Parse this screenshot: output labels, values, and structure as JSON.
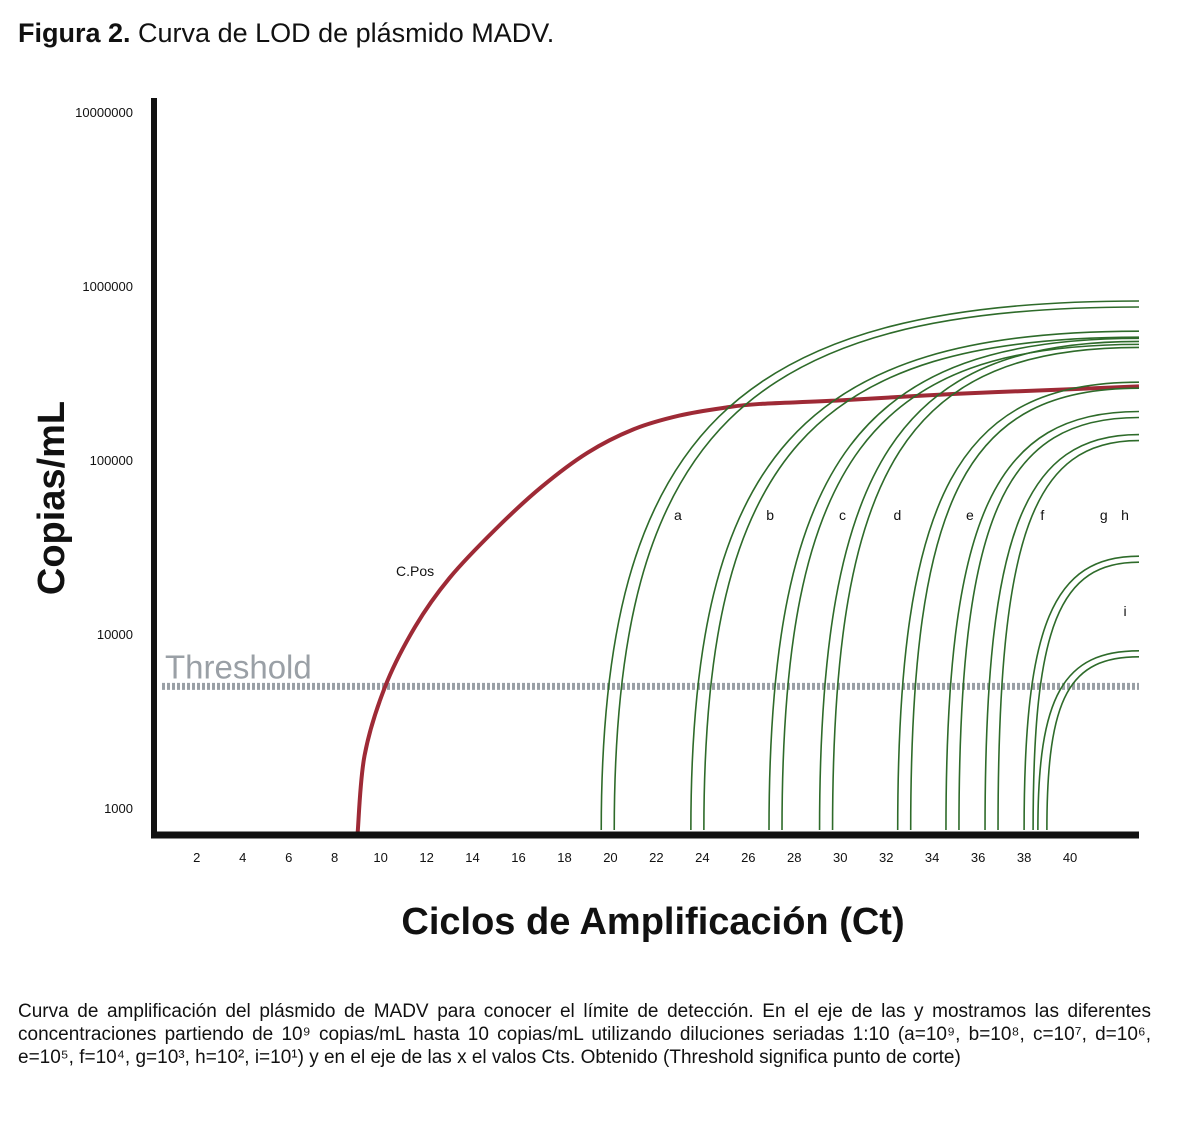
{
  "figure": {
    "label": "Figura 2.",
    "title": "Curva de LOD de plásmido MADV."
  },
  "chart_data": {
    "type": "line",
    "xlabel": "Ciclos de Amplificación (Ct)",
    "ylabel": "Copias/mL",
    "x_ticks": [
      2,
      4,
      6,
      8,
      10,
      12,
      14,
      16,
      18,
      20,
      22,
      24,
      26,
      28,
      30,
      32,
      34,
      36,
      38,
      40
    ],
    "y_ticks": [
      "1000",
      "10000",
      "100000",
      "1000000",
      "10000000"
    ],
    "y_scale": "log",
    "ylim": [
      700,
      12000000
    ],
    "grid": false,
    "threshold": {
      "label": "Threshold",
      "y": 5000,
      "color": "#9aa0a6"
    },
    "positive_control": {
      "label": "C.Pos",
      "color": "#9e2a36",
      "points": [
        [
          9.0,
          720
        ],
        [
          9.3,
          2000
        ],
        [
          10.2,
          5000
        ],
        [
          11.5,
          11000
        ],
        [
          13.0,
          21000
        ],
        [
          15.0,
          40000
        ],
        [
          17.0,
          70000
        ],
        [
          19.0,
          110000
        ],
        [
          21.0,
          150000
        ],
        [
          23.0,
          180000
        ],
        [
          25.0,
          200000
        ],
        [
          26.5,
          210000
        ],
        [
          30.0,
          220000
        ],
        [
          35.0,
          240000
        ],
        [
          40.0,
          255000
        ],
        [
          43.0,
          265000
        ]
      ]
    },
    "series_color": "#2e6b2a",
    "series": [
      {
        "name": "a",
        "x_start": 19.6,
        "plateau": 820000
      },
      {
        "name": "b",
        "x_start": 23.5,
        "plateau": 550000
      },
      {
        "name": "c",
        "x_start": 26.9,
        "plateau": 500000
      },
      {
        "name": "d",
        "x_start": 29.1,
        "plateau": 480000
      },
      {
        "name": "e",
        "x_start": 32.5,
        "plateau": 280000
      },
      {
        "name": "f",
        "x_start": 34.6,
        "plateau": 190000
      },
      {
        "name": "g",
        "x_start": 36.3,
        "plateau": 140000
      },
      {
        "name": "h",
        "x_start": 38.0,
        "plateau": 28000
      },
      {
        "name": "i",
        "x_start": 38.6,
        "plateau": 8000
      }
    ]
  },
  "caption": {
    "text": "Curva de amplificación del plásmido de MADV para conocer el límite de detección. En el eje de las y mostramos las diferentes concentraciones partiendo de 10⁹ copias/mL hasta 10 copias/mL utilizando diluciones seriadas 1:10 (a=10⁹, b=10⁸, c=10⁷, d=10⁶, e=10⁵, f=10⁴, g=10³, h=10², i=10¹) y en el eje de las x el valos Cts. Obtenido (Threshold significa punto de corte)"
  }
}
